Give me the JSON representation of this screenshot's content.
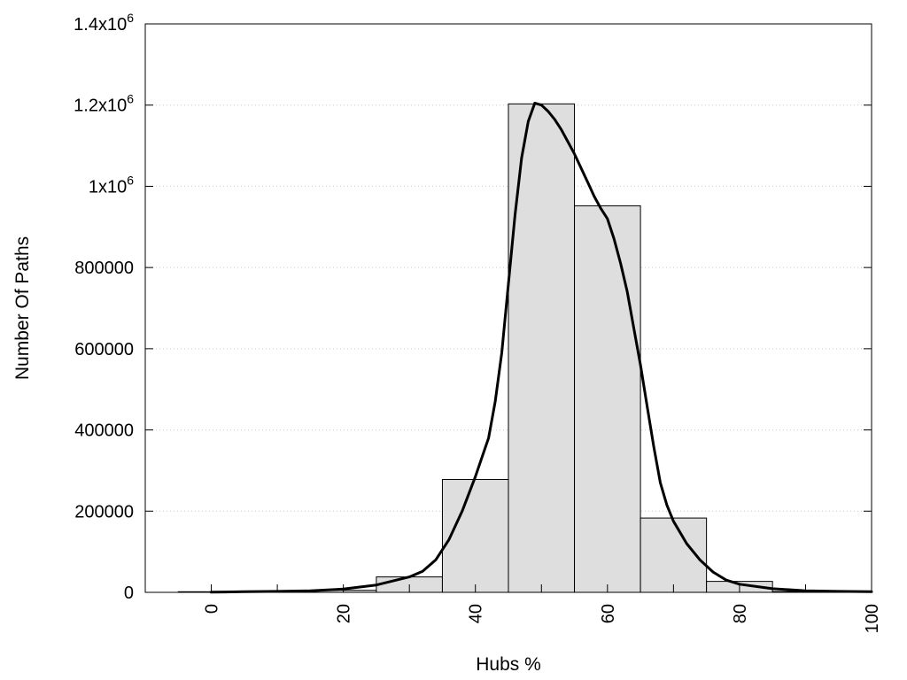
{
  "chart_data": {
    "type": "bar",
    "title": "",
    "xlabel": "Hubs %",
    "ylabel": "Number Of Paths",
    "xlim": [
      -10,
      100
    ],
    "ylim": [
      0,
      1400000
    ],
    "x_ticks": [
      {
        "value": 0,
        "label": "0"
      },
      {
        "value": 20,
        "label": "20"
      },
      {
        "value": 40,
        "label": "40"
      },
      {
        "value": 60,
        "label": "60"
      },
      {
        "value": 80,
        "label": "80"
      },
      {
        "value": 100,
        "label": "100"
      }
    ],
    "y_ticks": [
      {
        "value": 0,
        "label": "0",
        "exp": ""
      },
      {
        "value": 200000,
        "label": "200000",
        "exp": ""
      },
      {
        "value": 400000,
        "label": "400000",
        "exp": ""
      },
      {
        "value": 600000,
        "label": "600000",
        "exp": ""
      },
      {
        "value": 800000,
        "label": "800000",
        "exp": ""
      },
      {
        "value": 1000000,
        "label": "1x10",
        "exp": "6"
      },
      {
        "value": 1200000,
        "label": "1.2x10",
        "exp": "6"
      },
      {
        "value": 1400000,
        "label": "1.4x10",
        "exp": "6"
      }
    ],
    "grid": {
      "y": true,
      "x": false
    },
    "bin_width": 10,
    "bins": [
      {
        "center": 0,
        "value": 1500
      },
      {
        "center": 10,
        "value": 3000
      },
      {
        "center": 20,
        "value": 5000
      },
      {
        "center": 30,
        "value": 38000
      },
      {
        "center": 40,
        "value": 278000
      },
      {
        "center": 50,
        "value": 1203000
      },
      {
        "center": 60,
        "value": 952000
      },
      {
        "center": 70,
        "value": 183000
      },
      {
        "center": 80,
        "value": 27000
      },
      {
        "center": 90,
        "value": 2000
      }
    ],
    "curve": {
      "x": [
        0,
        5,
        10,
        15,
        20,
        25,
        30,
        32,
        34,
        36,
        38,
        40,
        42,
        43,
        44,
        45,
        46,
        47,
        48,
        49,
        50,
        51,
        52,
        53,
        54,
        55,
        56,
        57,
        58,
        59,
        60,
        61,
        62,
        63,
        64,
        65,
        66,
        67,
        68,
        69,
        70,
        72,
        74,
        76,
        78,
        80,
        85,
        90,
        95,
        100
      ],
      "y": [
        500,
        1500,
        2500,
        4000,
        8000,
        18000,
        38000,
        52000,
        80000,
        130000,
        200000,
        285000,
        380000,
        470000,
        590000,
        760000,
        930000,
        1070000,
        1160000,
        1205000,
        1200000,
        1185000,
        1165000,
        1140000,
        1110000,
        1080000,
        1045000,
        1010000,
        975000,
        945000,
        920000,
        870000,
        810000,
        740000,
        650000,
        560000,
        460000,
        360000,
        270000,
        215000,
        175000,
        120000,
        80000,
        50000,
        30000,
        20000,
        9000,
        4000,
        2500,
        1500
      ]
    },
    "colors": {
      "bar_fill": "#dedede",
      "bar_stroke": "#000000",
      "curve": "#000000",
      "grid": "#c8c8c8"
    }
  }
}
